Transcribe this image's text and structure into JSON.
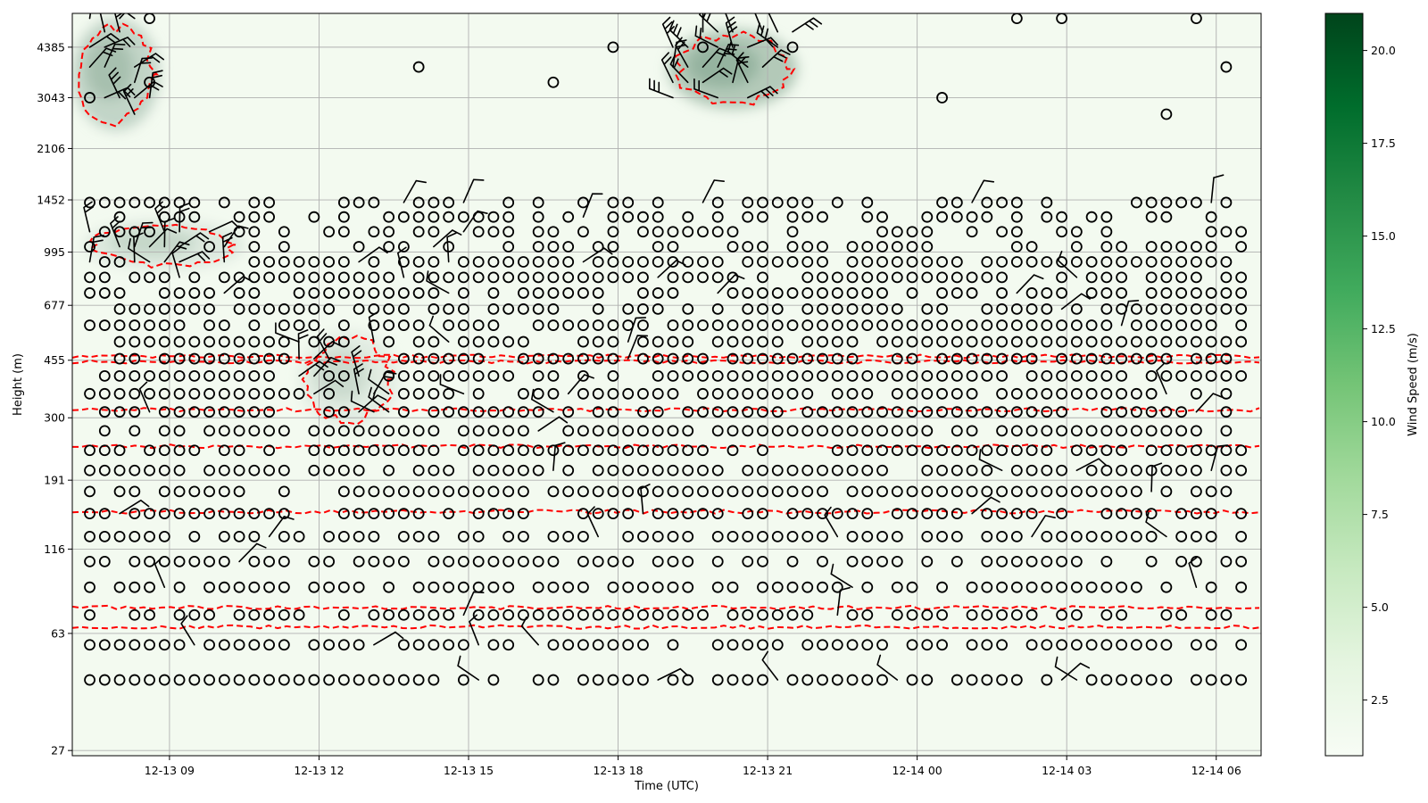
{
  "chart_data": {
    "type": "heatmap",
    "title": "",
    "xlabel": "Time (UTC)",
    "ylabel": "Height (m)",
    "colorbar_label": "Wind Speed (m/s)",
    "colormap": "Greens",
    "colorbar_range": [
      1.0,
      21.0
    ],
    "colorbar_ticks": [
      "2.5",
      "5.0",
      "7.5",
      "10.0",
      "12.5",
      "15.0",
      "17.5",
      "20.0"
    ],
    "xlim_hours_from_12-13_00": [
      7.05,
      30.9
    ],
    "x_ticks": [
      {
        "label": "12-13 09",
        "hour": 9
      },
      {
        "label": "12-13 12",
        "hour": 12
      },
      {
        "label": "12-13 15",
        "hour": 15
      },
      {
        "label": "12-13 18",
        "hour": 18
      },
      {
        "label": "12-13 21",
        "hour": 21
      },
      {
        "label": "12-14 00",
        "hour": 24
      },
      {
        "label": "12-14 03",
        "hour": 27
      },
      {
        "label": "12-14 06",
        "hour": 30
      }
    ],
    "y_scale": "log",
    "ylim_m": [
      26,
      5600
    ],
    "y_ticks": [
      "27",
      "63",
      "116",
      "191",
      "300",
      "455",
      "677",
      "995",
      "1452",
      "2106",
      "3043",
      "4385"
    ],
    "gate_heights_m": [
      45,
      58,
      72,
      88,
      106,
      127,
      150,
      176,
      205,
      237,
      273,
      313,
      357,
      406,
      460,
      520,
      586,
      659,
      740,
      829,
      927,
      1035,
      1153,
      1283,
      1425,
      2700,
      3043,
      3400,
      3800,
      4385,
      4900,
      5400
    ],
    "time_step_hours": 0.3,
    "calm_marker_description": "open circle = calm / very low wind",
    "contour_color": "#ff0000",
    "contour_style": "dashed",
    "contour_heights_m": [
      66,
      76,
      152,
      244,
      318,
      450,
      468
    ],
    "wind_maximum_regions": [
      {
        "name": "early high-level jet",
        "time_hours": [
          7.05,
          8.8
        ],
        "height_m": [
          2400,
          5400
        ],
        "peak_speed_ms": 6.0
      },
      {
        "name": "evening high-level jet",
        "time_hours": [
          19.0,
          21.6
        ],
        "height_m": [
          2800,
          5000
        ],
        "peak_speed_ms": 7.5
      },
      {
        "name": "morning low-level wind",
        "time_hours": [
          7.3,
          10.5
        ],
        "height_m": [
          880,
          1250
        ],
        "peak_speed_ms": 3.5
      },
      {
        "name": "midday low-level wind",
        "time_hours": [
          11.6,
          13.6
        ],
        "height_m": [
          280,
          560
        ],
        "peak_speed_ms": 3.0
      }
    ],
    "colors": {
      "low": "#f7fcf5",
      "high": "#00441b",
      "grid": "#b0b0b0"
    }
  }
}
